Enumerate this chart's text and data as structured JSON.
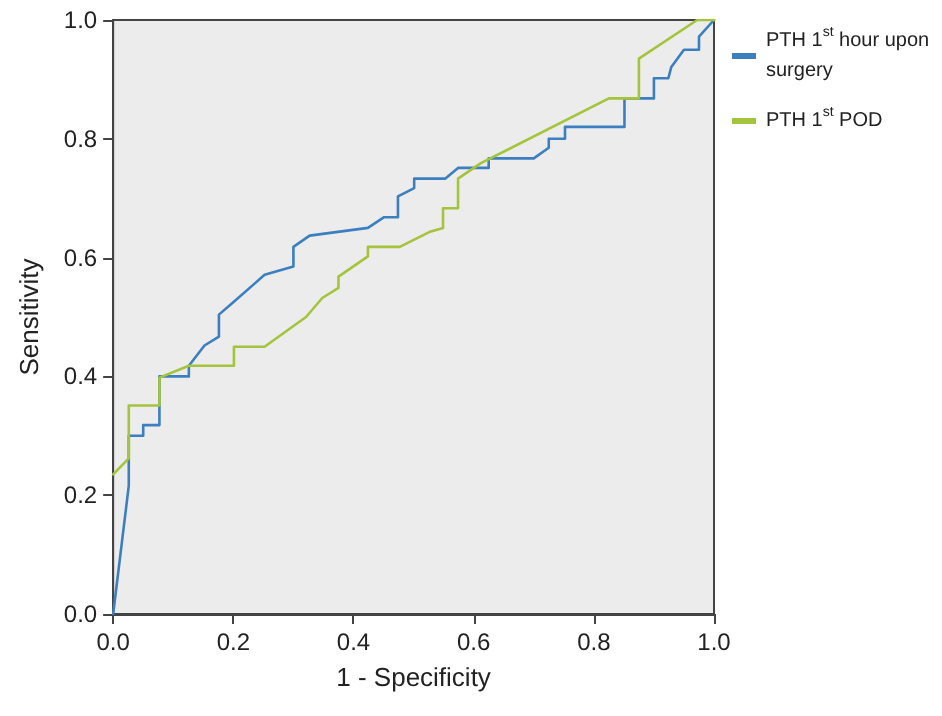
{
  "chart_data": {
    "type": "line",
    "xlabel": "1 - Specificity",
    "ylabel": "Sensitivity",
    "xlim": [
      0,
      1
    ],
    "ylim": [
      0,
      1
    ],
    "xticks": [
      {
        "value": 0,
        "label": "0.0"
      },
      {
        "value": 0.2,
        "label": "0.2"
      },
      {
        "value": 0.4,
        "label": "0.4"
      },
      {
        "value": 0.6,
        "label": "0.6"
      },
      {
        "value": 0.8,
        "label": "0.8"
      },
      {
        "value": 1,
        "label": "1.0"
      }
    ],
    "yticks": [
      {
        "value": 0,
        "label": "0.0"
      },
      {
        "value": 0.2,
        "label": "0.2"
      },
      {
        "value": 0.4,
        "label": "0.4"
      },
      {
        "value": 0.6,
        "label": "0.6"
      },
      {
        "value": 0.8,
        "label": "0.8"
      },
      {
        "value": 1,
        "label": "1.0"
      }
    ],
    "grid": false,
    "legend": "top right",
    "marker": "none",
    "line_style": "solid",
    "series": [
      {
        "name": "PTH 1$^{st}$ hour upon surgery",
        "color": "#3b7fc0",
        "x": [
          0,
          0.026,
          0.026,
          0.05,
          0.05,
          0.077,
          0.077,
          0.126,
          0.126,
          0.152,
          0.176,
          0.176,
          0.198,
          0.252,
          0.3,
          0.3,
          0.327,
          0.424,
          0.451,
          0.474,
          0.474,
          0.501,
          0.501,
          0.553,
          0.574,
          0.625,
          0.625,
          0.7,
          0.725,
          0.725,
          0.752,
          0.752,
          0.851,
          0.851,
          0.9,
          0.9,
          0.924,
          0.929,
          0.95,
          0.975,
          0.975,
          1
        ],
        "values": [
          0,
          0.216,
          0.3,
          0.3,
          0.318,
          0.318,
          0.4,
          0.4,
          0.418,
          0.452,
          0.467,
          0.504,
          0.523,
          0.571,
          0.585,
          0.618,
          0.637,
          0.65,
          0.668,
          0.668,
          0.703,
          0.717,
          0.733,
          0.733,
          0.751,
          0.751,
          0.767,
          0.767,
          0.785,
          0.8,
          0.8,
          0.82,
          0.82,
          0.868,
          0.868,
          0.902,
          0.902,
          0.921,
          0.95,
          0.95,
          0.972,
          1
        ]
      },
      {
        "name": "PTH 1$^{st}$ POD",
        "color": "#a4c43c",
        "x": [
          0,
          0.026,
          0.026,
          0.077,
          0.077,
          0.126,
          0.201,
          0.201,
          0.252,
          0.321,
          0.348,
          0.375,
          0.375,
          0.424,
          0.424,
          0.477,
          0.526,
          0.549,
          0.549,
          0.574,
          0.574,
          0.612,
          0.825,
          0.875,
          0.875,
          0.972,
          1
        ],
        "values": [
          0.235,
          0.262,
          0.351,
          0.351,
          0.398,
          0.418,
          0.418,
          0.45,
          0.45,
          0.5,
          0.532,
          0.549,
          0.568,
          0.602,
          0.618,
          0.618,
          0.643,
          0.65,
          0.683,
          0.683,
          0.733,
          0.759,
          0.868,
          0.868,
          0.935,
          1,
          1
        ]
      }
    ]
  }
}
